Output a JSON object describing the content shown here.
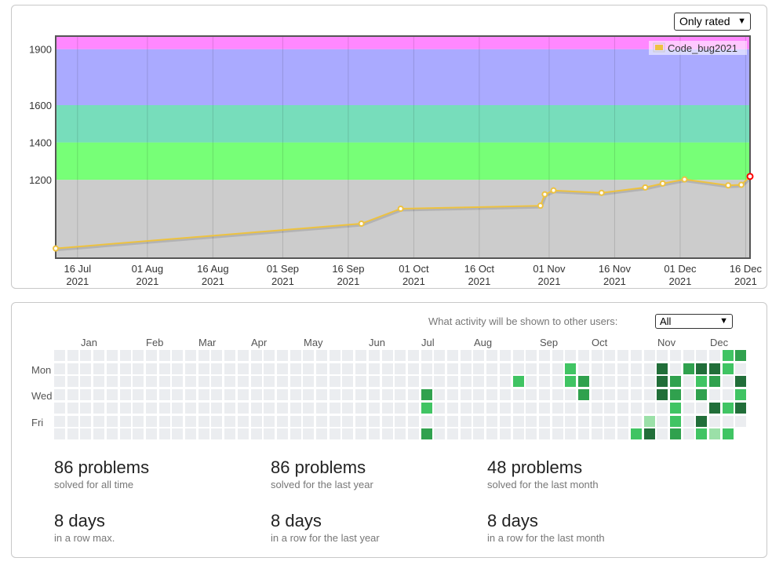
{
  "rating_panel": {
    "filter_label": "Only rated",
    "chart_data": {
      "type": "line",
      "series": [
        {
          "name": "Code_bug2021",
          "color": "#EDC240",
          "points": [
            [
              "2021-07-11",
              832
            ],
            [
              "2021-09-19",
              965
            ],
            [
              "2021-09-28",
              1045
            ],
            [
              "2021-10-30",
              1061
            ],
            [
              "2021-10-31",
              1122
            ],
            [
              "2021-11-02",
              1143
            ],
            [
              "2021-11-13",
              1130
            ],
            [
              "2021-11-23",
              1159
            ],
            [
              "2021-11-27",
              1180
            ],
            [
              "2021-12-02",
              1202
            ],
            [
              "2021-12-12",
              1170
            ],
            [
              "2021-12-15",
              1173
            ],
            [
              "2021-12-17",
              1218
            ]
          ]
        }
      ],
      "xlim": [
        "2021-07-11",
        "2021-12-17"
      ],
      "ylim": [
        780,
        1970
      ],
      "y_ticks": [
        1200,
        1400,
        1600,
        1900
      ],
      "x_ticks": [
        {
          "date": "2021-07-16",
          "line1": "16 Jul",
          "line2": "2021"
        },
        {
          "date": "2021-08-01",
          "line1": "01 Aug",
          "line2": "2021"
        },
        {
          "date": "2021-08-16",
          "line1": "16 Aug",
          "line2": "2021"
        },
        {
          "date": "2021-09-01",
          "line1": "01 Sep",
          "line2": "2021"
        },
        {
          "date": "2021-09-16",
          "line1": "16 Sep",
          "line2": "2021"
        },
        {
          "date": "2021-10-01",
          "line1": "01 Oct",
          "line2": "2021"
        },
        {
          "date": "2021-10-16",
          "line1": "16 Oct",
          "line2": "2021"
        },
        {
          "date": "2021-11-01",
          "line1": "01 Nov",
          "line2": "2021"
        },
        {
          "date": "2021-11-16",
          "line1": "16 Nov",
          "line2": "2021"
        },
        {
          "date": "2021-12-01",
          "line1": "01 Dec",
          "line2": "2021"
        },
        {
          "date": "2021-12-16",
          "line1": "16 Dec",
          "line2": "2021"
        }
      ],
      "bands": [
        {
          "from": 0,
          "to": 1200,
          "color": "#CCCCCC"
        },
        {
          "from": 1200,
          "to": 1400,
          "color": "#77FF77"
        },
        {
          "from": 1400,
          "to": 1600,
          "color": "#77DDBB"
        },
        {
          "from": 1600,
          "to": 1900,
          "color": "#AAAAFF"
        },
        {
          "from": 1900,
          "to": 2100,
          "color": "#FF88FF"
        }
      ],
      "legend": {
        "label": "Code_bug2021",
        "position": "top-right"
      },
      "grid": true
    }
  },
  "activity_panel": {
    "visibility_label": "What activity will be shown to other users:",
    "visibility_value": "All",
    "months": [
      {
        "label": "Jan",
        "col": 2
      },
      {
        "label": "Feb",
        "col": 7
      },
      {
        "label": "Mar",
        "col": 11
      },
      {
        "label": "Apr",
        "col": 15
      },
      {
        "label": "May",
        "col": 19
      },
      {
        "label": "Jun",
        "col": 24
      },
      {
        "label": "Jul",
        "col": 28
      },
      {
        "label": "Aug",
        "col": 32
      },
      {
        "label": "Sep",
        "col": 37
      },
      {
        "label": "Oct",
        "col": 41
      },
      {
        "label": "Nov",
        "col": 46
      },
      {
        "label": "Dec",
        "col": 50
      }
    ],
    "day_labels": [
      {
        "label": "Mon",
        "row": 1
      },
      {
        "label": "Wed",
        "row": 3
      },
      {
        "label": "Fri",
        "row": 5
      }
    ],
    "heatmap": {
      "weeks": 53,
      "days": 7,
      "first_week_start_row": 0,
      "last_week_end_row": 5,
      "level_colors": [
        "#EBEDF0",
        "#9BE0A8",
        "#40C463",
        "#30A14E",
        "#216E39"
      ],
      "active_cells": [
        [
          28,
          3,
          3
        ],
        [
          28,
          4,
          2
        ],
        [
          28,
          6,
          3
        ],
        [
          35,
          2,
          2
        ],
        [
          39,
          1,
          2
        ],
        [
          39,
          2,
          2
        ],
        [
          40,
          2,
          3
        ],
        [
          40,
          3,
          3
        ],
        [
          44,
          6,
          2
        ],
        [
          45,
          5,
          1
        ],
        [
          45,
          6,
          4
        ],
        [
          46,
          1,
          4
        ],
        [
          46,
          2,
          4
        ],
        [
          46,
          3,
          4
        ],
        [
          47,
          2,
          3
        ],
        [
          47,
          3,
          3
        ],
        [
          47,
          4,
          2
        ],
        [
          47,
          5,
          2
        ],
        [
          47,
          6,
          3
        ],
        [
          48,
          1,
          3
        ],
        [
          49,
          1,
          4
        ],
        [
          49,
          2,
          2
        ],
        [
          49,
          3,
          3
        ],
        [
          49,
          5,
          4
        ],
        [
          49,
          6,
          2
        ],
        [
          50,
          1,
          4
        ],
        [
          50,
          2,
          3
        ],
        [
          50,
          4,
          4
        ],
        [
          50,
          6,
          1
        ],
        [
          51,
          0,
          2
        ],
        [
          51,
          1,
          2
        ],
        [
          51,
          4,
          2
        ],
        [
          51,
          6,
          2
        ],
        [
          52,
          0,
          3
        ],
        [
          52,
          2,
          4
        ],
        [
          52,
          3,
          2
        ],
        [
          52,
          4,
          4
        ]
      ]
    },
    "stats": [
      {
        "value": "86 problems",
        "caption": "solved for all time"
      },
      {
        "value": "86 problems",
        "caption": "solved for the last year"
      },
      {
        "value": "48 problems",
        "caption": "solved for the last month"
      },
      {
        "value": "8 days",
        "caption": "in a row max."
      },
      {
        "value": "8 days",
        "caption": "in a row for the last year"
      },
      {
        "value": "8 days",
        "caption": "in a row for the last month"
      }
    ]
  }
}
